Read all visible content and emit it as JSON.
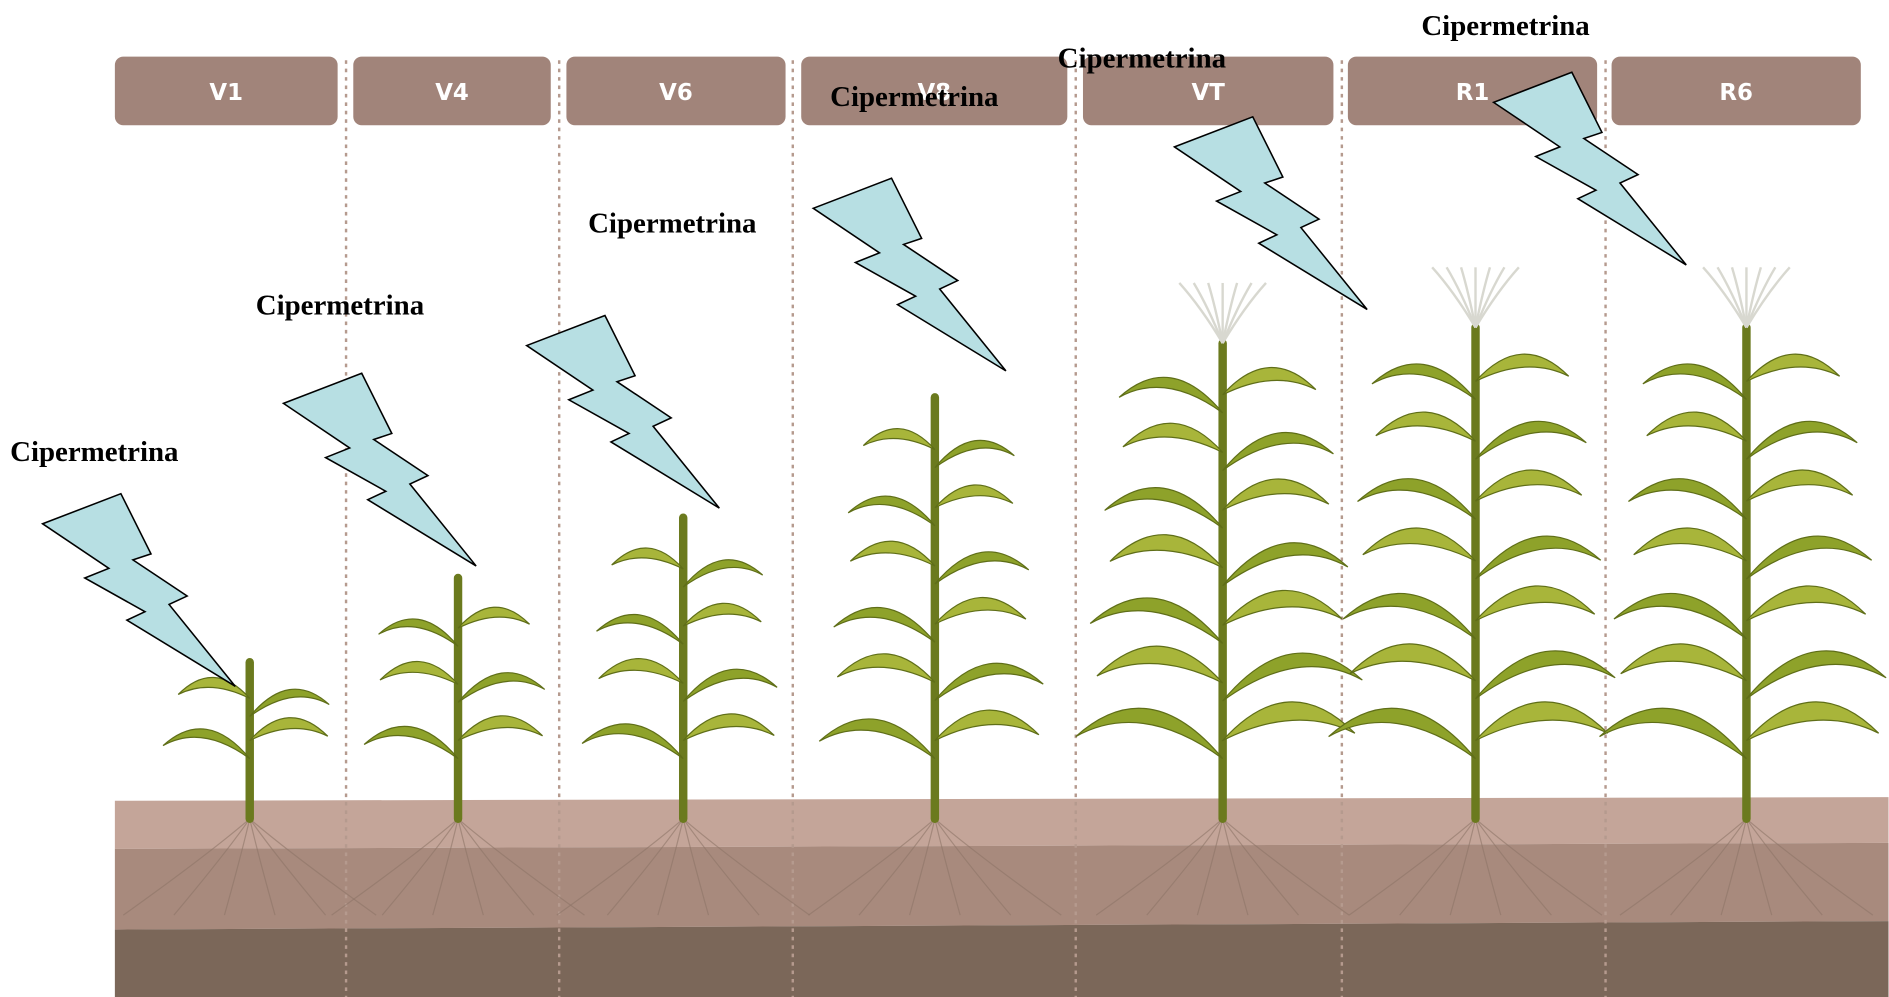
{
  "stages": [
    "V1",
    "V4",
    "V6",
    "V8",
    "VT",
    "R1",
    "R6"
  ],
  "applications": [
    "Cipermetrina",
    "Cipermetrina",
    "Cipermetrina",
    "Cipermetrina",
    "Cipermetrina",
    "Cipermetrina"
  ]
}
